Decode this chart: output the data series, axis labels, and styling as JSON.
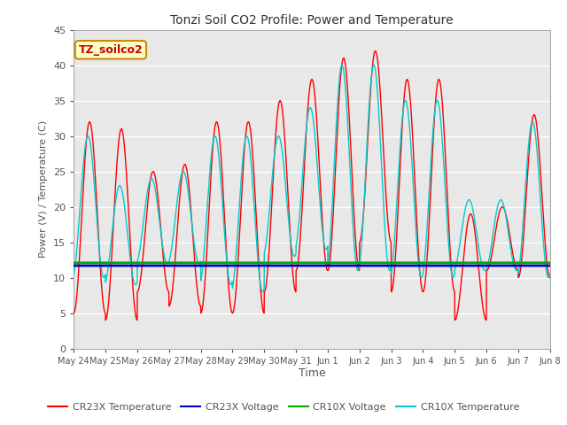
{
  "title": "Tonzi Soil CO2 Profile: Power and Temperature",
  "xlabel": "Time",
  "ylabel": "Power (V) / Temperature (C)",
  "ylim": [
    0,
    45
  ],
  "background_color": "#ffffff",
  "plot_bg_color": "#e8e8e8",
  "grid_color": "#ffffff",
  "annotation_text": "TZ_soilco2",
  "annotation_bg": "#ffffcc",
  "annotation_border": "#cc8800",
  "xtick_labels": [
    "May 24",
    "May 25",
    "May 26",
    "May 27",
    "May 28",
    "May 29",
    "May 30",
    "May 31",
    "Jun 1",
    "Jun 2",
    "Jun 3",
    "Jun 4",
    "Jun 5",
    "Jun 6",
    "Jun 7",
    "Jun 8"
  ],
  "cr23x_voltage_value": 11.7,
  "cr10x_voltage_value": 12.1,
  "colors": {
    "cr23x_temp": "#ff0000",
    "cr23x_voltage": "#0000cc",
    "cr10x_voltage": "#00aa00",
    "cr10x_temp": "#00cccc"
  },
  "legend_labels": [
    "CR23X Temperature",
    "CR23X Voltage",
    "CR10X Voltage",
    "CR10X Temperature"
  ],
  "cr23x_peaks": [
    32,
    31,
    25,
    26,
    32,
    32,
    35,
    38,
    41,
    42,
    38,
    38,
    19,
    20,
    33
  ],
  "cr23x_troughs": [
    5,
    4,
    8,
    6,
    5,
    5,
    8,
    11,
    11,
    15,
    8,
    8,
    4,
    11,
    10
  ],
  "cr10x_peaks": [
    30,
    23,
    24,
    25,
    30,
    30,
    30,
    34,
    40,
    40,
    35,
    35,
    21,
    21,
    32
  ],
  "cr10x_troughs": [
    10,
    9,
    12,
    12,
    9,
    8,
    13,
    14,
    11,
    11,
    10,
    10,
    11,
    11,
    10
  ]
}
